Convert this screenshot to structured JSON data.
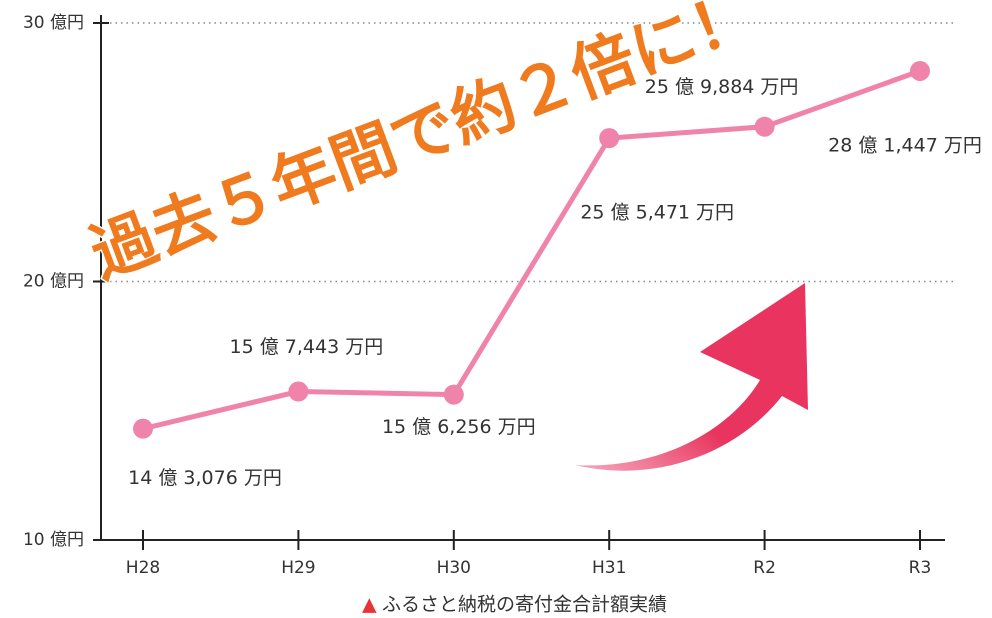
{
  "chart_data": {
    "type": "line",
    "headline": "過去５年間で約２倍に！",
    "caption_mark": "▲",
    "caption": "ふるさと納税の寄付金合計額実績",
    "categories": [
      "H28",
      "H29",
      "H30",
      "H31",
      "R2",
      "R3"
    ],
    "series": [
      {
        "color": "#f083aa",
        "values": [
          14.3076,
          15.7443,
          15.6256,
          25.5471,
          25.9884,
          28.1447
        ],
        "value_labels": [
          "14 億 3,076 万円",
          "15 億 7,443 万円",
          "15 億 6,256 万円",
          "25 億 5,471 万円",
          "25 億 9,884 万円",
          "28 億 1,447 万円"
        ]
      }
    ],
    "ylim": [
      10,
      30
    ],
    "yticks": [
      {
        "value": 10,
        "label": "10 億円"
      },
      {
        "value": 20,
        "label": "20 億円"
      },
      {
        "value": 30,
        "label": "30 億円"
      }
    ],
    "grid": true
  }
}
